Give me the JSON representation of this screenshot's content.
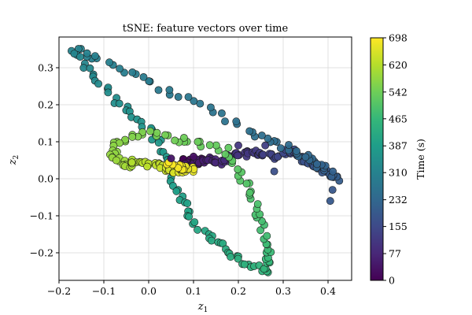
{
  "chart_data": {
    "type": "scatter",
    "title": "tSNE: feature vectors over time",
    "xlabel": "z",
    "xlabel_sub": "1",
    "ylabel": "z",
    "ylabel_sub": "2",
    "xlim": [
      -0.2,
      0.46
    ],
    "ylim": [
      -0.27,
      0.38
    ],
    "xticks": [
      -0.2,
      -0.1,
      0.0,
      0.1,
      0.2,
      0.3,
      0.4
    ],
    "xtick_labels": [
      "−0.2",
      "−0.1",
      "0.0",
      "0.1",
      "0.2",
      "0.3",
      "0.4"
    ],
    "yticks": [
      -0.2,
      -0.1,
      0.0,
      0.1,
      0.2,
      0.3
    ],
    "ytick_labels": [
      "−0.2",
      "−0.1",
      "0.0",
      "0.1",
      "0.2",
      "0.3"
    ],
    "grid": true,
    "colormap": "viridis",
    "colorbar": {
      "label": "Time (s)",
      "range": [
        0,
        698
      ],
      "ticks": [
        0,
        77,
        155,
        232,
        310,
        387,
        465,
        542,
        620,
        698
      ],
      "tick_labels": [
        "0",
        "77",
        "155",
        "232",
        "310",
        "387",
        "465",
        "542",
        "620",
        "698"
      ]
    },
    "waypoints": [
      {
        "t": 0,
        "z1": 0.07,
        "z2": 0.045
      },
      {
        "t": 20,
        "z1": 0.12,
        "z2": 0.05
      },
      {
        "t": 40,
        "z1": 0.08,
        "z2": 0.035
      },
      {
        "t": 60,
        "z1": 0.13,
        "z2": 0.055
      },
      {
        "t": 80,
        "z1": 0.16,
        "z2": 0.04
      },
      {
        "t": 100,
        "z1": 0.2,
        "z2": 0.065
      },
      {
        "t": 120,
        "z1": 0.24,
        "z2": 0.07
      },
      {
        "t": 140,
        "z1": 0.28,
        "z2": 0.06
      },
      {
        "t": 160,
        "z1": 0.32,
        "z2": 0.075
      },
      {
        "t": 180,
        "z1": 0.36,
        "z2": 0.04
      },
      {
        "t": 195,
        "z1": 0.4,
        "z2": 0.015
      },
      {
        "t": 205,
        "z1": 0.42,
        "z2": -0.005
      },
      {
        "t": 215,
        "z1": 0.4,
        "z2": 0.02
      },
      {
        "t": 240,
        "z1": 0.33,
        "z2": 0.075
      },
      {
        "t": 260,
        "z1": 0.22,
        "z2": 0.13
      },
      {
        "t": 275,
        "z1": 0.1,
        "z2": 0.21
      },
      {
        "t": 290,
        "z1": -0.02,
        "z2": 0.27
      },
      {
        "t": 305,
        "z1": -0.12,
        "z2": 0.33
      },
      {
        "t": 315,
        "z1": -0.17,
        "z2": 0.35
      },
      {
        "t": 330,
        "z1": -0.12,
        "z2": 0.28
      },
      {
        "t": 345,
        "z1": -0.06,
        "z2": 0.2
      },
      {
        "t": 360,
        "z1": 0.0,
        "z2": 0.14
      },
      {
        "t": 375,
        "z1": 0.04,
        "z2": 0.06
      },
      {
        "t": 390,
        "z1": 0.06,
        "z2": -0.03
      },
      {
        "t": 405,
        "z1": 0.09,
        "z2": -0.1
      },
      {
        "t": 420,
        "z1": 0.14,
        "z2": -0.16
      },
      {
        "t": 440,
        "z1": 0.2,
        "z2": -0.22
      },
      {
        "t": 455,
        "z1": 0.26,
        "z2": -0.245
      },
      {
        "t": 465,
        "z1": 0.27,
        "z2": -0.23
      },
      {
        "t": 480,
        "z1": 0.26,
        "z2": -0.16
      },
      {
        "t": 495,
        "z1": 0.24,
        "z2": -0.08
      },
      {
        "t": 510,
        "z1": 0.21,
        "z2": 0.0
      },
      {
        "t": 525,
        "z1": 0.17,
        "z2": 0.08
      },
      {
        "t": 540,
        "z1": 0.08,
        "z2": 0.1
      },
      {
        "t": 555,
        "z1": 0.0,
        "z2": 0.125
      },
      {
        "t": 570,
        "z1": -0.07,
        "z2": 0.1
      },
      {
        "t": 585,
        "z1": -0.08,
        "z2": 0.06
      },
      {
        "t": 600,
        "z1": -0.05,
        "z2": 0.035
      },
      {
        "t": 615,
        "z1": -0.03,
        "z2": 0.05
      },
      {
        "t": 635,
        "z1": 0.02,
        "z2": 0.035
      },
      {
        "t": 655,
        "z1": 0.06,
        "z2": 0.02
      },
      {
        "t": 675,
        "z1": 0.1,
        "z2": 0.025
      },
      {
        "t": 698,
        "z1": 0.04,
        "z2": 0.04
      }
    ],
    "extra_points": [
      {
        "t": 170,
        "z1": 0.28,
        "z2": 0.02
      },
      {
        "t": 195,
        "z1": 0.405,
        "z2": -0.06
      },
      {
        "t": 190,
        "z1": 0.41,
        "z2": -0.03
      },
      {
        "t": 40,
        "z1": 0.05,
        "z2": 0.055
      },
      {
        "t": 30,
        "z1": 0.1,
        "z2": 0.06
      },
      {
        "t": 110,
        "z1": 0.2,
        "z2": 0.09
      },
      {
        "t": 130,
        "z1": 0.26,
        "z2": 0.09
      }
    ]
  }
}
